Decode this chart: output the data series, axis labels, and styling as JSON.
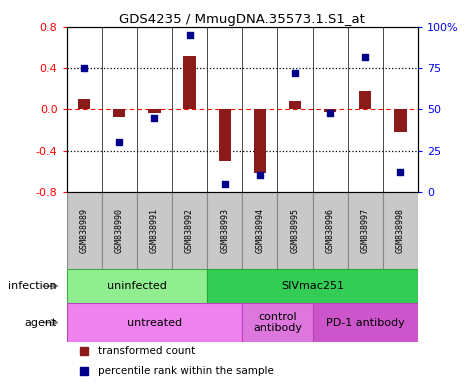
{
  "title": "GDS4235 / MmugDNA.35573.1.S1_at",
  "samples": [
    "GSM838989",
    "GSM838990",
    "GSM838991",
    "GSM838992",
    "GSM838993",
    "GSM838994",
    "GSM838995",
    "GSM838996",
    "GSM838997",
    "GSM838998"
  ],
  "transformed_count": [
    0.1,
    -0.07,
    -0.03,
    0.52,
    -0.5,
    -0.62,
    0.08,
    -0.02,
    0.18,
    -0.22
  ],
  "percentile_rank": [
    75,
    30,
    45,
    95,
    5,
    10,
    72,
    48,
    82,
    12
  ],
  "ylim_left": [
    -0.8,
    0.8
  ],
  "ylim_right": [
    0,
    100
  ],
  "yticks_left": [
    -0.8,
    -0.4,
    0.0,
    0.4,
    0.8
  ],
  "yticks_right": [
    0,
    25,
    50,
    75,
    100
  ],
  "ytick_labels_right": [
    "0",
    "25",
    "50",
    "75",
    "100%"
  ],
  "hlines_dotted": [
    0.4,
    -0.4
  ],
  "hline_dashed": 0.0,
  "bar_color": "#8B1A1A",
  "scatter_color": "#00008B",
  "scatter_size": 18,
  "bar_width": 0.35,
  "infection_groups": [
    {
      "label": "uninfected",
      "start": 0,
      "end": 4,
      "color": "#90EE90",
      "edge": "#44AA44"
    },
    {
      "label": "SIVmac251",
      "start": 4,
      "end": 10,
      "color": "#33CC55",
      "edge": "#22AA33"
    }
  ],
  "agent_groups": [
    {
      "label": "untreated",
      "start": 0,
      "end": 5,
      "color": "#EE82EE",
      "edge": "#BB44BB"
    },
    {
      "label": "control\nantibody",
      "start": 5,
      "end": 7,
      "color": "#DD77DD",
      "edge": "#BB44BB"
    },
    {
      "label": "PD-1 antibody",
      "start": 7,
      "end": 10,
      "color": "#CC55CC",
      "edge": "#BB44BB"
    }
  ],
  "infection_label": "infection",
  "agent_label": "agent",
  "legend_items": [
    {
      "label": "transformed count",
      "color": "#8B1A1A",
      "marker": "s"
    },
    {
      "label": "percentile rank within the sample",
      "color": "#00008B",
      "marker": "s"
    }
  ],
  "sample_box_color": "#C8C8C8",
  "sample_box_edge": "#888888"
}
